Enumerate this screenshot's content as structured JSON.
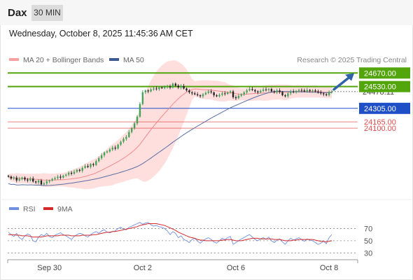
{
  "header": {
    "symbol": "Dax",
    "timeframe": "30 MIN"
  },
  "datetime": "Wednesday, October 8, 2025 11:45:36 AM CET",
  "legend": {
    "ma20": "MA 20 + Bollinger Bands",
    "ma50": "MA 50",
    "credit": "Research © 2025 Trading Central"
  },
  "rsi_legend": {
    "rsi": "RSI",
    "ma9": "9MA"
  },
  "colors": {
    "support_resistance": "#52a50a",
    "pivot": "#1f4fc7",
    "lower_levels": "#e24b4b",
    "bollinger_fill": "#ffd6d6",
    "ma20": "#f08a8a",
    "ma50": "#5a6fa3",
    "rsi": "#6f8fe0",
    "rsi_ma": "#d42a2a",
    "arrow": "#2f62a8"
  },
  "chart_data": [
    {
      "type": "candlestick",
      "title": "",
      "xlabel": "",
      "ylabel": "",
      "x_ticks": [
        "Sep 30",
        "Oct 2",
        "Oct 6",
        "Oct 8"
      ],
      "x_tick_index": [
        15,
        49,
        83,
        117
      ],
      "ylim": [
        23400,
        24730
      ],
      "last_price": "24478.11",
      "levels": [
        {
          "label": "24670.00",
          "value": 24670,
          "kind": "resistance"
        },
        {
          "label": "24530.00",
          "value": 24530,
          "kind": "resistance"
        },
        {
          "label": "24305.00",
          "value": 24305,
          "kind": "pivot"
        },
        {
          "label": "24165.00",
          "value": 24165,
          "kind": "support"
        },
        {
          "label": "24100.00",
          "value": 24100,
          "kind": "support"
        }
      ],
      "close": [
        23600,
        23580,
        23590,
        23560,
        23575,
        23590,
        23570,
        23560,
        23580,
        23550,
        23540,
        23560,
        23520,
        23530,
        23550,
        23560,
        23575,
        23585,
        23600,
        23590,
        23610,
        23620,
        23640,
        23630,
        23650,
        23670,
        23660,
        23690,
        23710,
        23700,
        23730,
        23720,
        23760,
        23790,
        23820,
        23850,
        23860,
        23880,
        23900,
        23890,
        23930,
        23960,
        23990,
        24010,
        24060,
        24100,
        24150,
        24220,
        24350,
        24470,
        24490,
        24480,
        24500,
        24510,
        24505,
        24520,
        24515,
        24525,
        24530,
        24520,
        24560,
        24540,
        24520,
        24535,
        24510,
        24490,
        24470,
        24460,
        24450,
        24440,
        24430,
        24450,
        24465,
        24480,
        24470,
        24440,
        24430,
        24445,
        24460,
        24455,
        24470,
        24480,
        24420,
        24410,
        24435,
        24450,
        24470,
        24490,
        24505,
        24495,
        24480,
        24470,
        24485,
        24500,
        24495,
        24505,
        24480,
        24470,
        24490,
        24475,
        24440,
        24430,
        24460,
        24480,
        24470,
        24485,
        24495,
        24490,
        24480,
        24495,
        24485,
        24490,
        24480,
        24470,
        24460,
        24450,
        24440,
        24475,
        24478
      ]
    },
    {
      "type": "line",
      "title": "",
      "series": [
        {
          "name": "RSI",
          "values": [
            64,
            60,
            57,
            62,
            55,
            52,
            58,
            61,
            59,
            50,
            48,
            56,
            60,
            58,
            62,
            57,
            55,
            59,
            61,
            63,
            60,
            58,
            55,
            52,
            57,
            60,
            62,
            61,
            58,
            56,
            60,
            63,
            65,
            62,
            66,
            68,
            64,
            63,
            65,
            66,
            70,
            72,
            69,
            68,
            72,
            74,
            76,
            78,
            80,
            77,
            79,
            80,
            76,
            74,
            75,
            73,
            72,
            70,
            66,
            60,
            65,
            62,
            55,
            58,
            52,
            50,
            47,
            52,
            54,
            49,
            46,
            50,
            53,
            55,
            52,
            48,
            46,
            50,
            54,
            52,
            55,
            57,
            44,
            47,
            50,
            53,
            55,
            58,
            60,
            56,
            52,
            50,
            53,
            55,
            52,
            56,
            50,
            47,
            51,
            53,
            48,
            44,
            50,
            54,
            51,
            53,
            55,
            52,
            49,
            53,
            51,
            50,
            47,
            44,
            46,
            49,
            45,
            55,
            60
          ]
        },
        {
          "name": "9MA",
          "values": [
            60,
            60,
            60,
            59,
            59,
            58,
            58,
            58,
            57,
            56,
            56,
            56,
            56,
            57,
            58,
            58,
            58,
            58,
            58,
            59,
            59,
            59,
            59,
            58,
            58,
            58,
            58,
            59,
            59,
            59,
            59,
            60,
            60,
            61,
            62,
            63,
            64,
            64,
            65,
            65,
            66,
            67,
            68,
            69,
            70,
            71,
            72,
            73,
            75,
            76,
            77,
            78,
            78,
            78,
            78,
            77,
            76,
            75,
            73,
            71,
            69,
            67,
            64,
            62,
            60,
            58,
            56,
            55,
            54,
            52,
            51,
            51,
            50,
            50,
            50,
            50,
            50,
            50,
            51,
            51,
            52,
            52,
            51,
            50,
            50,
            50,
            51,
            52,
            53,
            54,
            54,
            54,
            53,
            53,
            53,
            53,
            53,
            52,
            52,
            52,
            51,
            50,
            50,
            50,
            51,
            51,
            52,
            52,
            52,
            52,
            52,
            52,
            51,
            50,
            49,
            49,
            48,
            49,
            50
          ]
        }
      ],
      "ylim": [
        20,
        82
      ],
      "y_ticks": [
        30,
        50,
        70
      ],
      "guide_levels": [
        30,
        50,
        70
      ]
    }
  ]
}
